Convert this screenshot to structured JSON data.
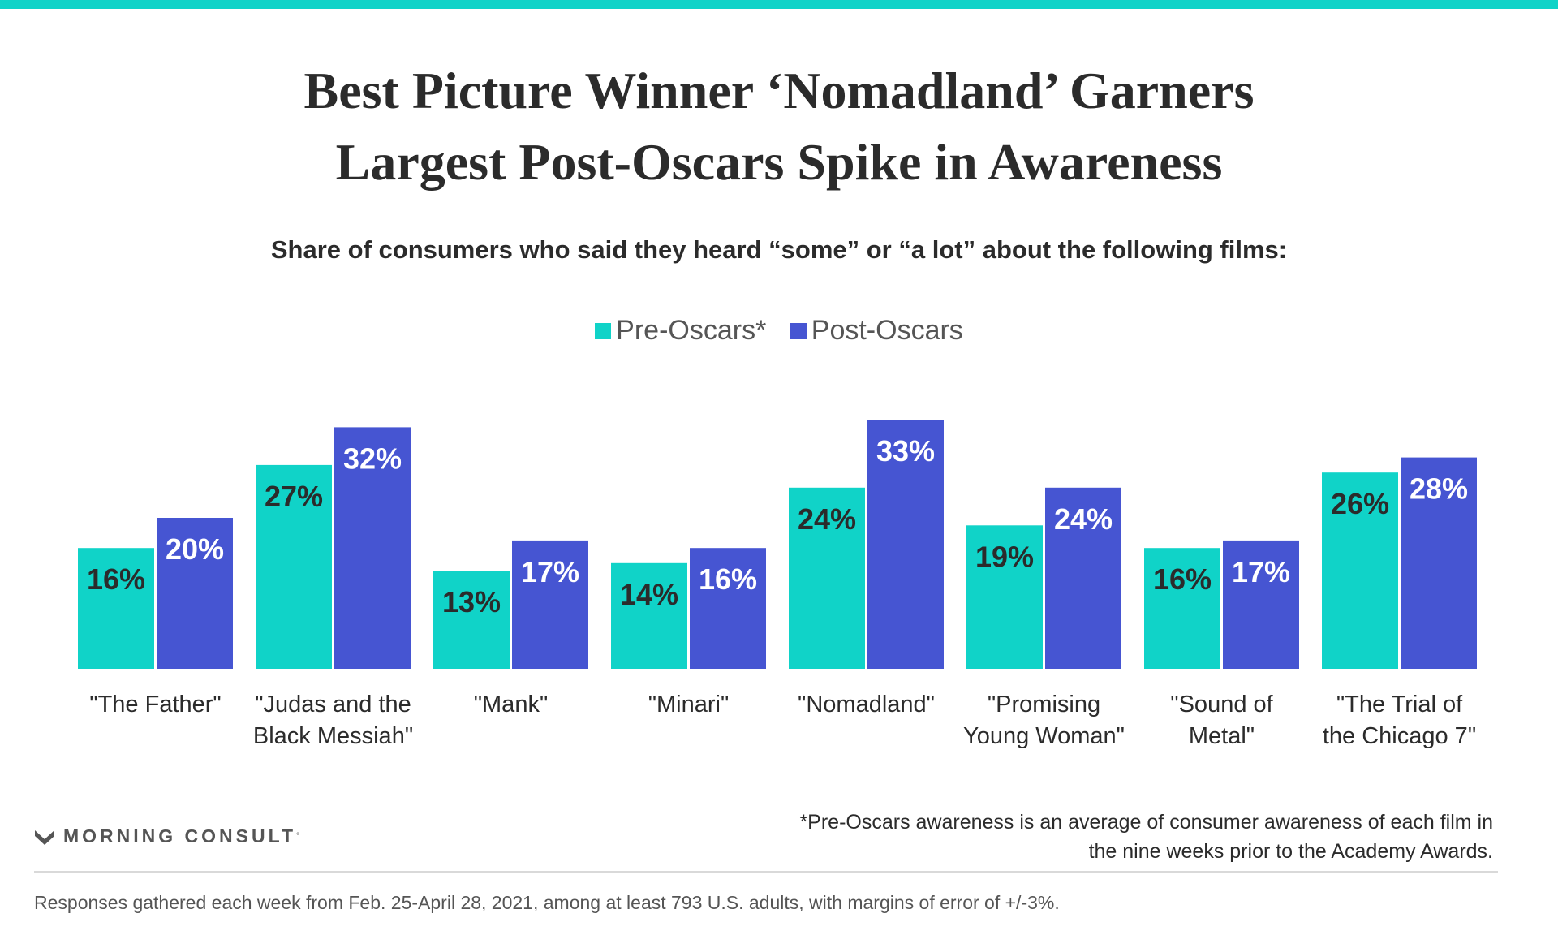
{
  "colors": {
    "accent_bar": "#10d3c8",
    "pre": "#10d3c8",
    "post": "#4655d2",
    "text": "#2b2b2b",
    "muted": "#555555"
  },
  "title_lines": [
    "Best Picture Winner ‘Nomadland’ Garners",
    "Largest Post-Oscars Spike in Awareness"
  ],
  "subtitle": "Share of consumers who said they heard “some” or “a lot” about the following films:",
  "legend": {
    "pre": "Pre-Oscars*",
    "post": "Post-Oscars"
  },
  "footnote_lines": [
    "*Pre-Oscars awareness is an average of consumer awareness of each film in",
    "the nine weeks prior to the Academy Awards."
  ],
  "source": "Responses gathered each week from Feb. 25-April 28, 2021, among at least 793 U.S. adults, with margins of error of +/-3%.",
  "logo": {
    "text": "MORNING CONSULT",
    "icon": "morning-consult-m-icon"
  },
  "chart_data": {
    "type": "bar",
    "title": "Best Picture Winner ‘Nomadland’ Garners Largest Post-Oscars Spike in Awareness",
    "subtitle": "Share of consumers who said they heard “some” or “a lot” about the following films:",
    "categories": [
      [
        "\"The Father\""
      ],
      [
        "\"Judas and the",
        "Black Messiah\""
      ],
      [
        "\"Mank\""
      ],
      [
        "\"Minari\""
      ],
      [
        "\"Nomadland\""
      ],
      [
        "\"Promising",
        "Young Woman\""
      ],
      [
        "\"Sound of",
        "Metal\""
      ],
      [
        "\"The Trial of",
        "the Chicago 7\""
      ]
    ],
    "series": [
      {
        "name": "Pre-Oscars*",
        "color": "#10d3c8",
        "label_color": "#2b2b2b",
        "values": [
          16,
          27,
          13,
          14,
          24,
          19,
          16,
          26
        ]
      },
      {
        "name": "Post-Oscars",
        "color": "#4655d2",
        "label_color": "#ffffff",
        "values": [
          20,
          32,
          17,
          16,
          33,
          24,
          17,
          28
        ]
      }
    ],
    "value_suffix": "%",
    "legend_position": "top-center",
    "grid": false
  }
}
